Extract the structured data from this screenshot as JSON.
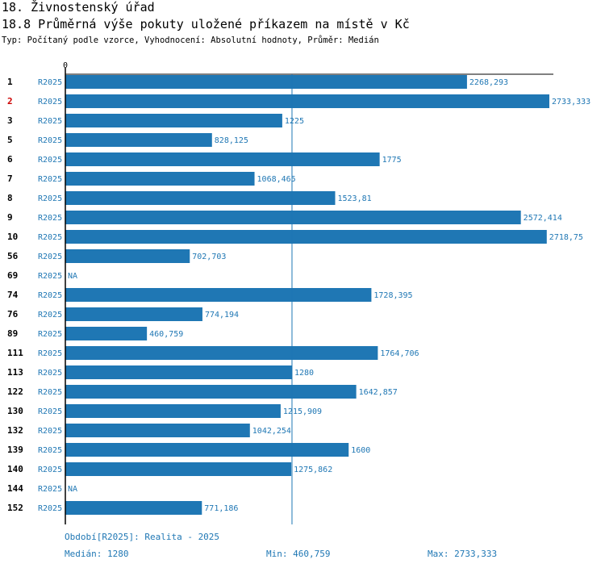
{
  "header": {
    "title": "18. Živnostenský úřad",
    "subtitle": "18.8 Průměrná výše pokuty uložené příkazem na místě v Kč",
    "typ_line": "Typ: Počítaný podle vzorce, Vyhodnocení: Absolutní hodnoty, Průměr: Medián"
  },
  "chart_data": {
    "type": "bar",
    "orientation": "horizontal",
    "title": "18.8 Průměrná výše pokuty uložené příkazem na místě v Kč",
    "x_axis_tick": "0",
    "xlim": [
      0,
      2733.333
    ],
    "median_line": 1280,
    "series_name": "R2025",
    "bar_color": "#1f77b4",
    "highlight_color": "#cc0000",
    "rows": [
      {
        "id": "1",
        "series": "R2025",
        "value": 2268.293,
        "label": "2268,293",
        "highlight": false
      },
      {
        "id": "2",
        "series": "R2025",
        "value": 2733.333,
        "label": "2733,333",
        "highlight": true
      },
      {
        "id": "3",
        "series": "R2025",
        "value": 1225,
        "label": "1225",
        "highlight": false
      },
      {
        "id": "5",
        "series": "R2025",
        "value": 828.125,
        "label": "828,125",
        "highlight": false
      },
      {
        "id": "6",
        "series": "R2025",
        "value": 1775,
        "label": "1775",
        "highlight": false
      },
      {
        "id": "7",
        "series": "R2025",
        "value": 1068.465,
        "label": "1068,465",
        "highlight": false
      },
      {
        "id": "8",
        "series": "R2025",
        "value": 1523.81,
        "label": "1523,81",
        "highlight": false
      },
      {
        "id": "9",
        "series": "R2025",
        "value": 2572.414,
        "label": "2572,414",
        "highlight": false
      },
      {
        "id": "10",
        "series": "R2025",
        "value": 2718.75,
        "label": "2718,75",
        "highlight": false
      },
      {
        "id": "56",
        "series": "R2025",
        "value": 702.703,
        "label": "702,703",
        "highlight": false
      },
      {
        "id": "69",
        "series": "R2025",
        "value": null,
        "label": "NA",
        "highlight": false
      },
      {
        "id": "74",
        "series": "R2025",
        "value": 1728.395,
        "label": "1728,395",
        "highlight": false
      },
      {
        "id": "76",
        "series": "R2025",
        "value": 774.194,
        "label": "774,194",
        "highlight": false
      },
      {
        "id": "89",
        "series": "R2025",
        "value": 460.759,
        "label": "460,759",
        "highlight": false
      },
      {
        "id": "111",
        "series": "R2025",
        "value": 1764.706,
        "label": "1764,706",
        "highlight": false
      },
      {
        "id": "113",
        "series": "R2025",
        "value": 1280,
        "label": "1280",
        "highlight": false
      },
      {
        "id": "122",
        "series": "R2025",
        "value": 1642.857,
        "label": "1642,857",
        "highlight": false
      },
      {
        "id": "130",
        "series": "R2025",
        "value": 1215.909,
        "label": "1215,909",
        "highlight": false
      },
      {
        "id": "132",
        "series": "R2025",
        "value": 1042.254,
        "label": "1042,254",
        "highlight": false
      },
      {
        "id": "139",
        "series": "R2025",
        "value": 1600,
        "label": "1600",
        "highlight": false
      },
      {
        "id": "140",
        "series": "R2025",
        "value": 1275.862,
        "label": "1275,862",
        "highlight": false
      },
      {
        "id": "144",
        "series": "R2025",
        "value": null,
        "label": "NA",
        "highlight": false
      },
      {
        "id": "152",
        "series": "R2025",
        "value": 771.186,
        "label": "771,186",
        "highlight": false
      }
    ]
  },
  "footer": {
    "period": "Období[R2025]: Realita - 2025",
    "median": "Medián: 1280",
    "min": "Min: 460,759",
    "max": "Max: 2733,333"
  }
}
